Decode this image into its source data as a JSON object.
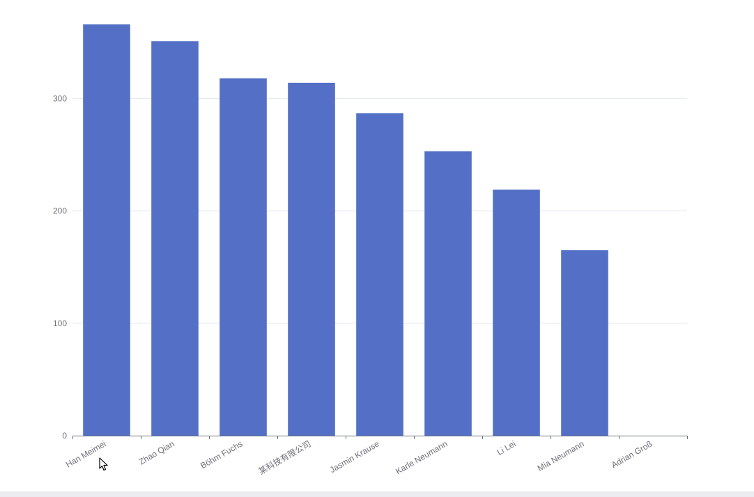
{
  "chart_data": {
    "type": "bar",
    "title": "",
    "xlabel": "",
    "ylabel": "",
    "categories": [
      "Han Meimei",
      "Zhao Qian",
      "Böhm Fuchs",
      "某科技有限公司",
      "Jasmin Krause",
      "Karle Neumann",
      "Li Lei",
      "Mia Neumann",
      "Adrian Groß"
    ],
    "values": [
      366,
      351,
      318,
      314,
      287,
      253,
      219,
      165,
      0
    ],
    "ylim": [
      0,
      366
    ],
    "yticks": [
      0,
      100,
      200,
      300
    ],
    "grid": true,
    "legend": "none",
    "bar_color": "#5470c6",
    "grid_color": "#e0e6f1",
    "axis_color": "#6e7079"
  },
  "cursor": {
    "icon": "mouse-pointer-icon"
  }
}
